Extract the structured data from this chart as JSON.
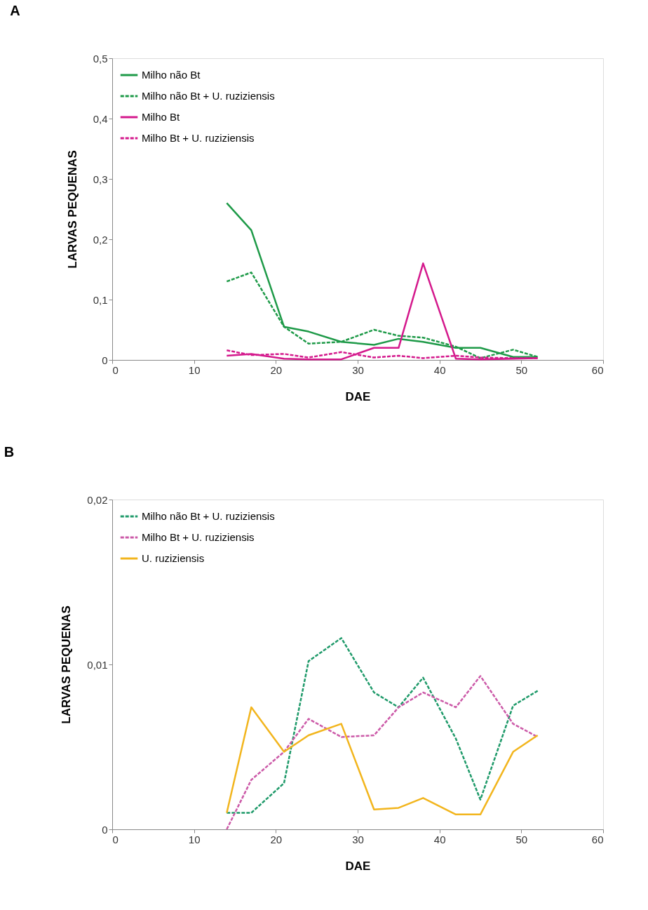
{
  "chart_data": [
    {
      "type": "line",
      "title": "A",
      "xlabel": "DAE",
      "ylabel": "LARVAS PEQUENAS",
      "legend": "top left",
      "grid": false,
      "marker": "none",
      "x": [
        14,
        17,
        21,
        24,
        28,
        32,
        35,
        38,
        42,
        45,
        49,
        52
      ],
      "xlim": [
        0,
        60
      ],
      "xticks": [
        0,
        10,
        20,
        30,
        40,
        50,
        60
      ],
      "ylim": [
        0,
        0.5
      ],
      "yticks": [
        {
          "value": 0,
          "label": "0"
        },
        {
          "value": 0.1,
          "label": "0,1"
        },
        {
          "value": 0.2,
          "label": "0,2"
        },
        {
          "value": 0.3,
          "label": "0,3"
        },
        {
          "value": 0.4,
          "label": "0,4"
        },
        {
          "value": 0.5,
          "label": "0,5"
        }
      ],
      "series": [
        {
          "name": "Milho não Bt",
          "color": "#1e9a48",
          "line_style": "solid",
          "values": [
            0.26,
            0.215,
            0.055,
            0.047,
            0.03,
            0.025,
            0.035,
            0.03,
            0.02,
            0.02,
            0.005,
            0.005
          ]
        },
        {
          "name": "Milho não Bt + U. ruziziensis",
          "color": "#1e9a48",
          "line_style": "dashed",
          "values": [
            0.13,
            0.145,
            0.055,
            0.027,
            0.03,
            0.05,
            0.04,
            0.037,
            0.022,
            0.003,
            0.017,
            0.005
          ]
        },
        {
          "name": "Milho Bt",
          "color": "#d4198c",
          "line_style": "solid",
          "values": [
            0.007,
            0.01,
            0.002,
            0.001,
            0.001,
            0.02,
            0.02,
            0.16,
            0.002,
            0.001,
            0.002,
            0.003
          ]
        },
        {
          "name": "Milho Bt + U. ruziziensis",
          "color": "#d4198c",
          "line_style": "dashed",
          "values": [
            0.016,
            0.008,
            0.01,
            0.004,
            0.013,
            0.004,
            0.007,
            0.003,
            0.007,
            0.004,
            0.003,
            0.003
          ]
        }
      ]
    },
    {
      "type": "line",
      "title": "B",
      "xlabel": "DAE",
      "ylabel": "LARVAS PEQUENAS",
      "legend": "top left",
      "grid": false,
      "marker": "none",
      "x": [
        14,
        17,
        21,
        24,
        28,
        32,
        35,
        38,
        42,
        45,
        49,
        52
      ],
      "xlim": [
        0,
        60
      ],
      "xticks": [
        0,
        10,
        20,
        30,
        40,
        50,
        60
      ],
      "ylim": [
        0,
        0.02
      ],
      "yticks": [
        {
          "value": 0,
          "label": "0"
        },
        {
          "value": 0.01,
          "label": "0,01"
        },
        {
          "value": 0.02,
          "label": "0,02"
        }
      ],
      "series": [
        {
          "name": "Milho não Bt + U. ruziziensis",
          "color": "#1f9a6a",
          "line_style": "dashed",
          "values": [
            0.001,
            0.001,
            0.0028,
            0.0102,
            0.0116,
            0.0083,
            0.0074,
            0.0092,
            0.0055,
            0.0018,
            0.0075,
            0.0084
          ]
        },
        {
          "name": "Milho Bt + U. ruziziensis",
          "color": "#cc5aa8",
          "line_style": "dashed",
          "values": [
            0,
            0.003,
            0.0047,
            0.0067,
            0.0056,
            0.0057,
            0.0074,
            0.0083,
            0.0074,
            0.0093,
            0.0064,
            0.0056
          ]
        },
        {
          "name": "U. ruziziensis",
          "color": "#f2b51d",
          "line_style": "solid",
          "values": [
            0.001,
            0.0074,
            0.0047,
            0.0057,
            0.0064,
            0.0012,
            0.0013,
            0.0019,
            0.0009,
            0.0009,
            0.0047,
            0.0057
          ]
        }
      ]
    }
  ]
}
